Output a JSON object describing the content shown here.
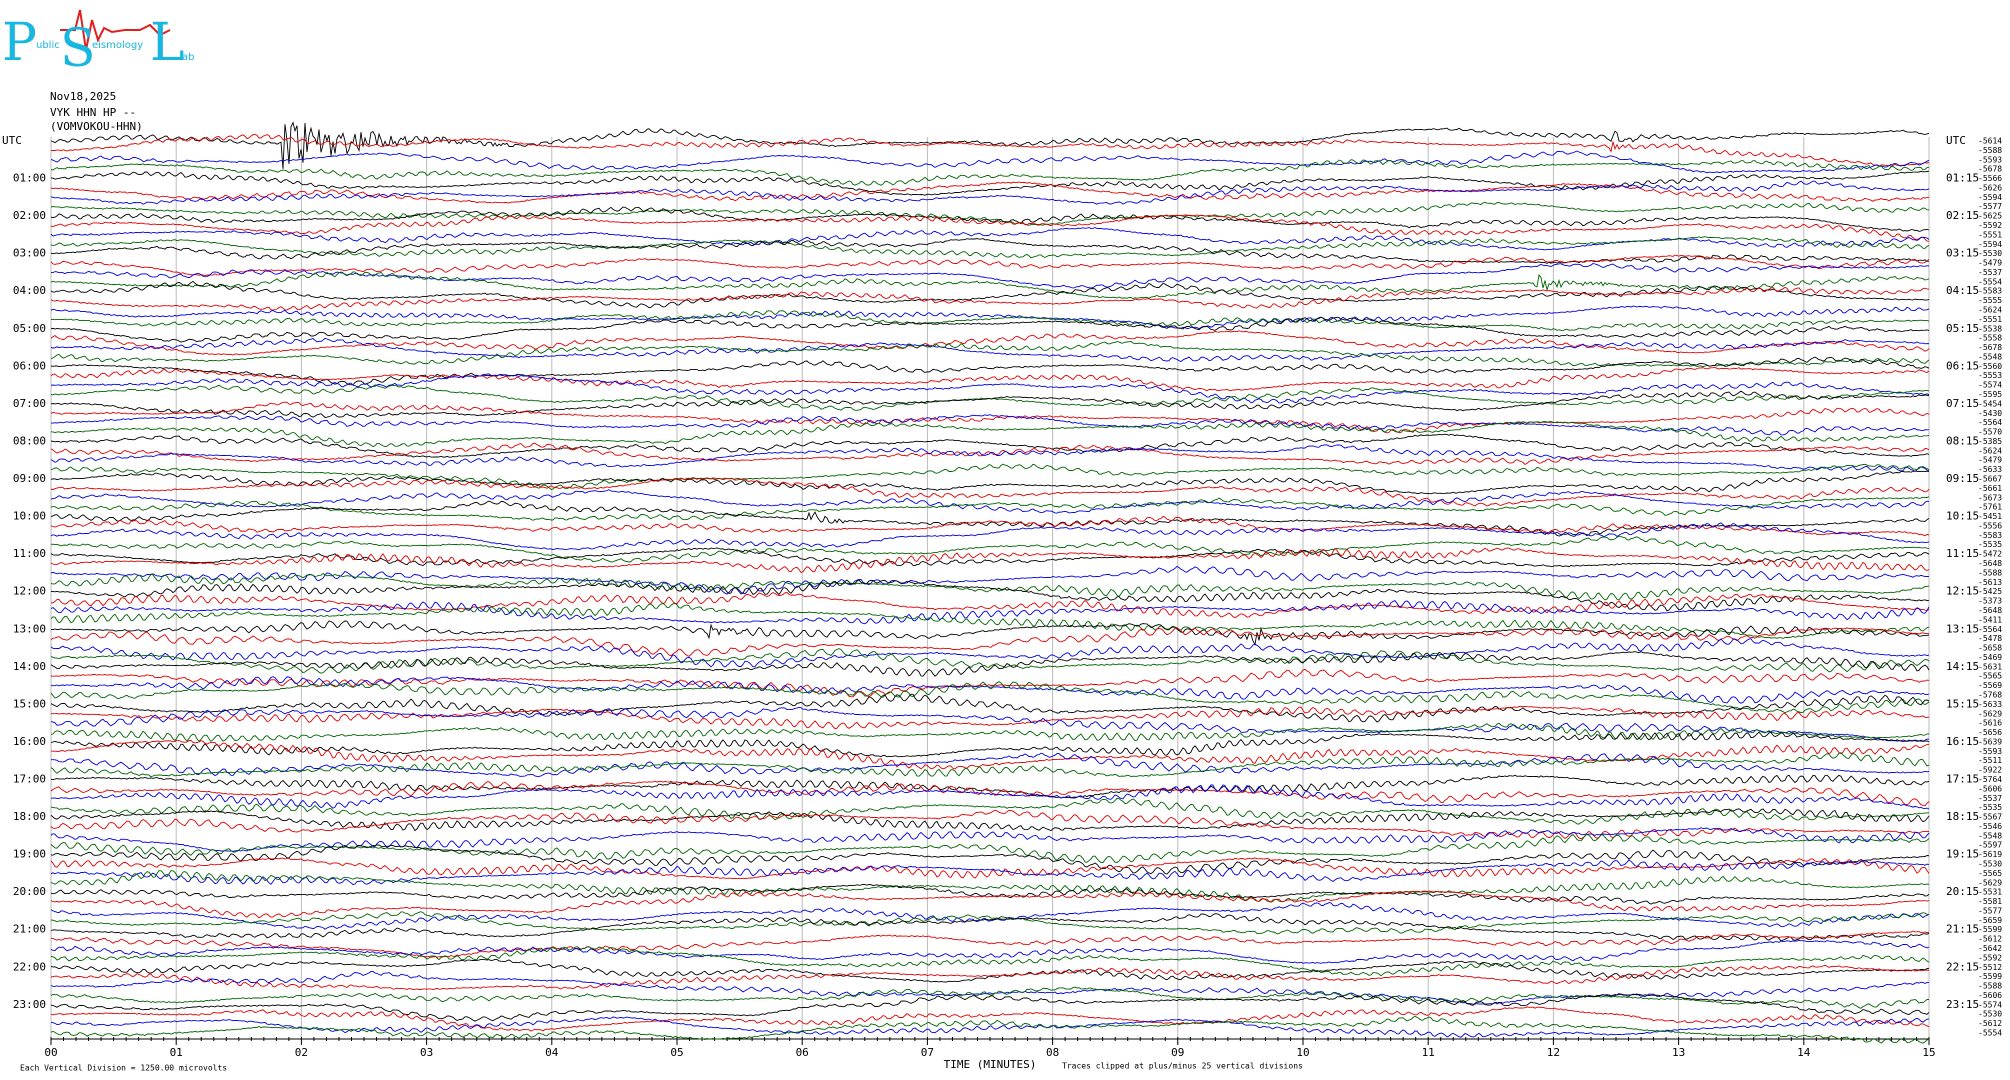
{
  "logo": {
    "letters": [
      "P",
      "S",
      "L"
    ],
    "words": [
      "ublic",
      "eismology",
      "ab"
    ]
  },
  "header": {
    "date": "Nov18,2025",
    "station": "VYK HHN HP --",
    "channel": "(VOMVOKOU-HHN)"
  },
  "left_labels": [
    "UTC",
    "01:00",
    "02:00",
    "03:00",
    "04:00",
    "05:00",
    "06:00",
    "07:00",
    "08:00",
    "09:00",
    "10:00",
    "11:00",
    "12:00",
    "13:00",
    "14:00",
    "15:00",
    "16:00",
    "17:00",
    "18:00",
    "19:00",
    "20:00",
    "21:00",
    "22:00",
    "23:00"
  ],
  "right_labels": [
    "UTC",
    "01:15",
    "02:15",
    "03:15",
    "04:15",
    "05:15",
    "06:15",
    "07:15",
    "08:15",
    "09:15",
    "10:15",
    "11:15",
    "12:15",
    "13:15",
    "14:15",
    "15:15",
    "16:15",
    "17:15",
    "18:15",
    "19:15",
    "20:15",
    "21:15",
    "22:15",
    "23:15"
  ],
  "trace_offsets": [
    -5614,
    -5588,
    -5593,
    -5678,
    -5566,
    -5626,
    -5594,
    -5577,
    -5625,
    -5592,
    -5551,
    -5594,
    -5530,
    -5479,
    -5537,
    -5554,
    -5583,
    -5555,
    -5624,
    -5551,
    -5538,
    -5558,
    -5678,
    -5548,
    -5560,
    -5553,
    -5574,
    -5595,
    -5454,
    -5430,
    -5564,
    -5570,
    -5385,
    -5624,
    -5479,
    -5633,
    -5667,
    -5661,
    -5673,
    -5761,
    -5451,
    -5556,
    -5583,
    -5535,
    -5472,
    -5648,
    -5588,
    -5613,
    -5425,
    -5373,
    -5648,
    -5411,
    -5564,
    -5478,
    -5658,
    -5469,
    -5631,
    -5565,
    -5569,
    -5768,
    -5633,
    -5629,
    -5616,
    -5656,
    -5639,
    -5593,
    -5511,
    -5922,
    -5764,
    -5606,
    -5537,
    -5535,
    -5567,
    -5546,
    -5548,
    -5597,
    -5619,
    -5530,
    -5565,
    -5629,
    -5531,
    -5581,
    -5577,
    -5659,
    -5599,
    -5612,
    -5642,
    -5592,
    -5512,
    -5599,
    -5588,
    -5606,
    -5574,
    -5530,
    -5612,
    -5554
  ],
  "minute_labels": [
    "00",
    "01",
    "02",
    "03",
    "04",
    "05",
    "06",
    "07",
    "08",
    "09",
    "10",
    "11",
    "12",
    "13",
    "14",
    "15"
  ],
  "x_title": "TIME (MINUTES)",
  "footer": {
    "scale": "Each Vertical Division = 1250.00 microvolts",
    "clip": "Traces clipped at plus/minus 25 vertical divisions"
  }
}
